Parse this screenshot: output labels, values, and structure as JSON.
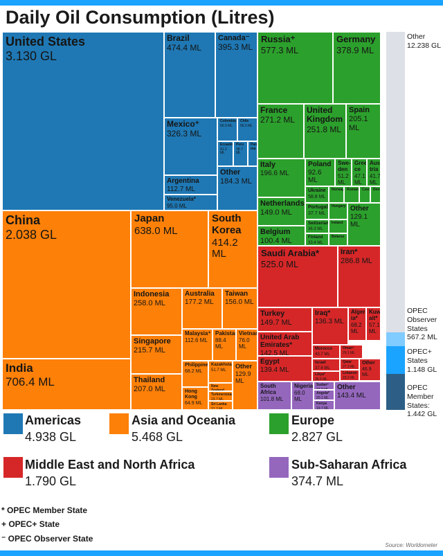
{
  "title": "Daily Oil Consumption (Litres)",
  "source": "Source: Worldometer",
  "colors": {
    "Americas": "#1f78b4",
    "Asia and Oceania": "#fd8008",
    "Europe": "#2ca02c",
    "Middle East and North Africa": "#d62728",
    "Sub-Saharan Africa": "#9467bd",
    "bars": "#1aa3ff"
  },
  "legend": [
    {
      "region": "Americas",
      "value": "4.938 GL"
    },
    {
      "region": "Asia and Oceania",
      "value": "5.468 GL"
    },
    {
      "region": "Europe",
      "value": "2.827 GL"
    },
    {
      "region": "Middle East and North Africa",
      "value": "1.790 GL"
    },
    {
      "region": "Sub-Saharan Africa",
      "value": "374.7 ML"
    }
  ],
  "notes": [
    "* OPEC Member State",
    "+ OPEC+ State",
    "⁻ OPEC Observer State"
  ],
  "opec_bar": [
    {
      "label": "Other",
      "value": "12.238 GL",
      "color": "#dde0e6"
    },
    {
      "label": "OPEC Observer States",
      "value": "567.2 ML",
      "color": "#80cbff"
    },
    {
      "label": "OPEC+ States",
      "value": "1.148 GL",
      "color": "#1aa3ff"
    },
    {
      "label": "OPEC Member States:",
      "value": "1.442 GL",
      "color": "#2d5f86"
    }
  ],
  "chart_data": {
    "type": "treemap",
    "title": "Daily Oil Consumption (Litres)",
    "unit_note": "ML = megalitres, GL = gigalitres",
    "items": [
      {
        "name": "United States",
        "value": "3.130 GL",
        "region": "Americas"
      },
      {
        "name": "Brazil",
        "value": "474.4 ML",
        "region": "Americas"
      },
      {
        "name": "Canada⁻",
        "value": "395.3 ML",
        "region": "Americas"
      },
      {
        "name": "Mexico⁺",
        "value": "326.3 ML",
        "region": "Americas"
      },
      {
        "name": "Colombia",
        "value": "56.9 ML",
        "region": "Americas"
      },
      {
        "name": "Chile",
        "value": "56.0 ML",
        "region": "Americas"
      },
      {
        "name": "Ecuador",
        "value": "41.2 ML",
        "region": "Americas"
      },
      {
        "name": "Peru",
        "value": "38.7 ML",
        "region": "Americas"
      },
      {
        "name": "Pana-ma",
        "value": "",
        "region": "Americas"
      },
      {
        "name": "Argentina",
        "value": "112.7 ML",
        "region": "Americas"
      },
      {
        "name": "Other",
        "value": "184.3 ML",
        "region": "Americas"
      },
      {
        "name": "Venezuela*",
        "value": "95.0 ML",
        "region": "Americas"
      },
      {
        "name": "Russia⁺",
        "value": "577.3 ML",
        "region": "Europe"
      },
      {
        "name": "Germany",
        "value": "378.9 ML",
        "region": "Europe"
      },
      {
        "name": "France",
        "value": "271.2 ML",
        "region": "Europe"
      },
      {
        "name": "United Kingdom",
        "value": "251.8 ML",
        "region": "Europe"
      },
      {
        "name": "Spain",
        "value": "205.1 ML",
        "region": "Europe"
      },
      {
        "name": "Italy",
        "value": "196.6 ML",
        "region": "Europe"
      },
      {
        "name": "Poland",
        "value": "92.6 ML",
        "region": "Europe"
      },
      {
        "name": "Swe-den",
        "value": "51.2 ML",
        "region": "Europe"
      },
      {
        "name": "Gree-ce",
        "value": "47.1 ML",
        "region": "Europe"
      },
      {
        "name": "Aus-tria",
        "value": "41.7 ML",
        "region": "Europe"
      },
      {
        "name": "Ukraine",
        "value": "58.8 ML",
        "region": "Europe"
      },
      {
        "name": "Norway",
        "value": "",
        "region": "Europe"
      },
      {
        "name": "Romania",
        "value": "",
        "region": "Europe"
      },
      {
        "name": "Czech",
        "value": "",
        "region": "Europe"
      },
      {
        "name": "Denmark",
        "value": "",
        "region": "Europe"
      },
      {
        "name": "Netherlands",
        "value": "149.0 ML",
        "region": "Europe"
      },
      {
        "name": "Portugal",
        "value": "37.7 ML",
        "region": "Europe"
      },
      {
        "name": "Hungary",
        "value": "",
        "region": "Europe"
      },
      {
        "name": "Other",
        "value": "129.1 ML",
        "region": "Europe"
      },
      {
        "name": "Switzerland",
        "value": "36.3 ML",
        "region": "Europe"
      },
      {
        "name": "Ireland",
        "value": "",
        "region": "Europe"
      },
      {
        "name": "Belgium",
        "value": "100.4 ML",
        "region": "Europe"
      },
      {
        "name": "Finland",
        "value": "33.4 ML",
        "region": "Europe"
      },
      {
        "name": "Belarus",
        "value": "",
        "region": "Europe"
      },
      {
        "name": "China",
        "value": "2.038 GL",
        "region": "Asia and Oceania"
      },
      {
        "name": "Japan",
        "value": "638.0 ML",
        "region": "Asia and Oceania"
      },
      {
        "name": "South Korea",
        "value": "414.2 ML",
        "region": "Asia and Oceania"
      },
      {
        "name": "Indonesia",
        "value": "258.0 ML",
        "region": "Asia and Oceania"
      },
      {
        "name": "Australia",
        "value": "177.2 ML",
        "region": "Asia and Oceania"
      },
      {
        "name": "Taiwan",
        "value": "156.0 ML",
        "region": "Asia and Oceania"
      },
      {
        "name": "Singapore",
        "value": "215.7 ML",
        "region": "Asia and Oceania"
      },
      {
        "name": "Malaysia⁺",
        "value": "112.6 ML",
        "region": "Asia and Oceania"
      },
      {
        "name": "Pakistan",
        "value": "88.4 ML",
        "region": "Asia and Oceania"
      },
      {
        "name": "Vietnam",
        "value": "76.0 ML",
        "region": "Asia and Oceania"
      },
      {
        "name": "Philippines",
        "value": "68.2 ML",
        "region": "Asia and Oceania"
      },
      {
        "name": "Kazakhstan⁺",
        "value": "51.7 ML",
        "region": "Asia and Oceania"
      },
      {
        "name": "Other",
        "value": "129.9 ML",
        "region": "Asia and Oceania"
      },
      {
        "name": "India",
        "value": "706.4 ML",
        "region": "Asia and Oceania"
      },
      {
        "name": "Thailand",
        "value": "207.0 ML",
        "region": "Asia and Oceania"
      },
      {
        "name": "Hong Kong",
        "value": "64.9 ML",
        "region": "Asia and Oceania"
      },
      {
        "name": "New Zealand",
        "value": "26.5 ML",
        "region": "Asia and Oceania"
      },
      {
        "name": "Turkmenistan",
        "value": "23.7 ML",
        "region": "Asia and Oceania"
      },
      {
        "name": "Sri Lanka",
        "value": "21.2 ML",
        "region": "Asia and Oceania"
      },
      {
        "name": "Saudi Arabia*",
        "value": "525.0 ML",
        "region": "Middle East and North Africa"
      },
      {
        "name": "Iran*",
        "value": "286.8 ML",
        "region": "Middle East and North Africa"
      },
      {
        "name": "Turkey",
        "value": "149.7 ML",
        "region": "Middle East and North Africa"
      },
      {
        "name": "Iraq*",
        "value": "136.3 ML",
        "region": "Middle East and North Africa"
      },
      {
        "name": "Alger-ia*",
        "value": "68.2 ML",
        "region": "Middle East and North Africa"
      },
      {
        "name": "Kuw-ait*",
        "value": "57.1 ML",
        "region": "Middle East and North Africa"
      },
      {
        "name": "United Arab Emirates*",
        "value": "142.5 ML",
        "region": "Middle East and North Africa"
      },
      {
        "name": "Morocco",
        "value": "43.7 ML",
        "region": "Middle East and North Africa"
      },
      {
        "name": "Oman⁺",
        "value": "29.1 ML",
        "region": "Middle East and North Africa"
      },
      {
        "name": "Egypt",
        "value": "139.4 ML",
        "region": "Middle East and North Africa"
      },
      {
        "name": "Israel",
        "value": "37.6 ML",
        "region": "Middle East and North Africa"
      },
      {
        "name": "Qatar",
        "value": "27.3 ML",
        "region": "Middle East and North Africa"
      },
      {
        "name": "Other",
        "value": "46.9 ML",
        "region": "Middle East and North Africa"
      },
      {
        "name": "Libya*",
        "value": "35.5 ML",
        "region": "Middle East and North Africa"
      },
      {
        "name": "Lebanon",
        "value": "23.2 ML",
        "region": "Middle East and North Africa"
      },
      {
        "name": "South Africa",
        "value": "101.8 ML",
        "region": "Sub-Saharan Africa"
      },
      {
        "name": "Nigeria*",
        "value": "68.0 ML",
        "region": "Sub-Saharan Africa"
      },
      {
        "name": "Sudan⁺",
        "value": "22.9 ML",
        "region": "Sub-Saharan Africa"
      },
      {
        "name": "Angola*",
        "value": "20.1 ML",
        "region": "Sub-Saharan Africa"
      },
      {
        "name": "Kenya",
        "value": "19.7 ML",
        "region": "Sub-Saharan Africa"
      },
      {
        "name": "Other",
        "value": "143.4 ML",
        "region": "Sub-Saharan Africa"
      }
    ]
  }
}
